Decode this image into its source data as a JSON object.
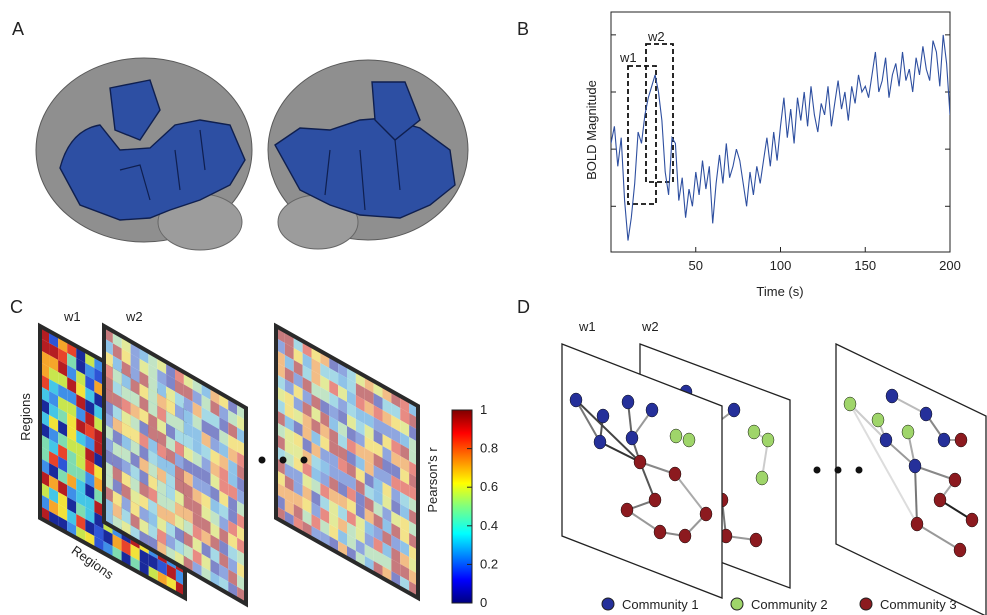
{
  "panel_labels": {
    "a": "A",
    "b": "B",
    "c": "C",
    "d": "D"
  },
  "panel_a": {
    "brain_color": "#2d4fa3",
    "cortex_color": "#8e8e8e"
  },
  "chart_data": {
    "type": "line",
    "xlabel": "Time (s)",
    "ylabel": "BOLD Magnitude",
    "xlim": [
      0,
      200
    ],
    "xticks": [
      "50",
      "100",
      "150",
      "200"
    ],
    "window_labels": [
      "w1",
      "w2"
    ],
    "series_color": "#2e4fa0",
    "x": [
      0,
      2,
      4,
      6,
      8,
      10,
      12,
      14,
      16,
      18,
      20,
      22,
      24,
      26,
      28,
      30,
      32,
      34,
      36,
      38,
      40,
      42,
      44,
      46,
      48,
      50,
      52,
      54,
      56,
      58,
      60,
      62,
      64,
      66,
      68,
      70,
      72,
      74,
      76,
      78,
      80,
      82,
      84,
      86,
      88,
      90,
      92,
      94,
      96,
      98,
      100,
      102,
      104,
      106,
      108,
      110,
      112,
      114,
      116,
      118,
      120,
      122,
      124,
      126,
      128,
      130,
      132,
      134,
      136,
      138,
      140,
      142,
      144,
      146,
      148,
      150,
      152,
      154,
      156,
      158,
      160,
      162,
      164,
      166,
      168,
      170,
      172,
      174,
      176,
      178,
      180,
      182,
      184,
      186,
      188,
      190,
      192,
      194,
      196,
      198,
      200
    ],
    "y": [
      0.1,
      0.4,
      -0.3,
      0.2,
      -0.9,
      -1.6,
      -1.2,
      -0.6,
      0.3,
      0.1,
      0.6,
      0.9,
      1.1,
      1.3,
      1.0,
      0.5,
      -0.4,
      -0.8,
      0.2,
      0.1,
      -0.9,
      -0.5,
      -1.2,
      -0.7,
      -1.0,
      -0.4,
      -0.8,
      -0.2,
      -0.7,
      -0.3,
      -1.3,
      -0.6,
      -0.1,
      -0.6,
      0.1,
      -0.5,
      -0.3,
      0.0,
      -0.2,
      -0.6,
      -1.0,
      -0.4,
      -0.8,
      -0.3,
      -0.6,
      -0.2,
      0.2,
      -0.3,
      0.3,
      -0.2,
      0.4,
      0.9,
      0.2,
      0.7,
      0.1,
      0.9,
      0.5,
      1.0,
      0.4,
      1.1,
      0.6,
      0.3,
      0.8,
      0.6,
      1.1,
      0.4,
      0.8,
      1.2,
      0.7,
      1.0,
      0.5,
      1.1,
      0.8,
      1.3,
      1.0,
      1.1,
      0.9,
      1.3,
      1.7,
      1.0,
      1.2,
      1.6,
      0.9,
      1.3,
      1.5,
      1.1,
      1.7,
      1.2,
      1.4,
      1.0,
      1.6,
      1.3,
      1.8,
      1.4,
      1.2,
      1.9,
      1.7,
      1.1,
      2.0,
      1.5,
      0.6
    ],
    "ylim": [
      -1.8,
      2.4
    ]
  },
  "panel_c": {
    "window_labels": [
      "w1",
      "w2"
    ],
    "axis_label": "Regions",
    "colorbar": {
      "label": "Pearson's r",
      "ticks": [
        "0",
        "0.2",
        "0.4",
        "0.6",
        "0.8",
        "1"
      ]
    }
  },
  "panel_d": {
    "window_labels": [
      "w1",
      "w2"
    ],
    "legend": [
      {
        "label": "Community 1",
        "color": "#25309a"
      },
      {
        "label": "Community 2",
        "color": "#9fd56a"
      },
      {
        "label": "Community 3",
        "color": "#8c1a1f"
      }
    ]
  }
}
